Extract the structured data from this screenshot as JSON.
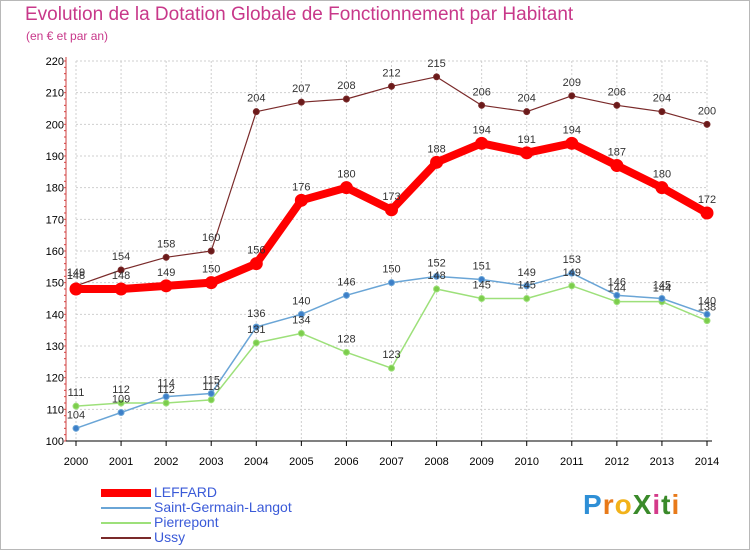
{
  "header": {
    "title": "Evolution de la Dotation Globale de Fonctionnement par Habitant",
    "subtitle": "(en € et par an)"
  },
  "logo": {
    "text": "ProXiti",
    "letters": [
      "P",
      "r",
      "o",
      "X",
      "i",
      "t",
      "i"
    ]
  },
  "colors": {
    "LEFFARD": "#ff0000",
    "Saint-Germain-Langot": "#6aa5d6",
    "Pierrepont": "#9de07a",
    "Ussy": "#7a2a2a",
    "axis_text": "#000000",
    "title": "#c8388a",
    "legend_text": "#3a5ad8",
    "grid": "#cfcfcf",
    "value_label": "#333333"
  },
  "chart_data": {
    "type": "line",
    "title": "Evolution de la Dotation Globale de Fonctionnement par Habitant",
    "subtitle": "(en € et par an)",
    "x": [
      2000,
      2001,
      2002,
      2003,
      2004,
      2005,
      2006,
      2007,
      2008,
      2009,
      2010,
      2011,
      2012,
      2013,
      2014
    ],
    "ylim": [
      100,
      220
    ],
    "yticks": [
      100,
      110,
      120,
      130,
      140,
      150,
      160,
      170,
      180,
      190,
      200,
      210,
      220
    ],
    "grid": true,
    "legend_position": "bottom-left",
    "series": [
      {
        "name": "LEFFARD",
        "values": [
          148,
          148,
          149,
          150,
          156,
          176,
          180,
          173,
          188,
          194,
          191,
          194,
          187,
          180,
          172
        ]
      },
      {
        "name": "Saint-Germain-Langot",
        "values": [
          104,
          109,
          114,
          115,
          136,
          140,
          146,
          150,
          152,
          151,
          149,
          153,
          146,
          145,
          140
        ]
      },
      {
        "name": "Pierrepont",
        "values": [
          111,
          112,
          112,
          113,
          131,
          134,
          128,
          123,
          148,
          145,
          145,
          149,
          144,
          144,
          138
        ]
      },
      {
        "name": "Ussy",
        "values": [
          149,
          154,
          158,
          160,
          204,
          207,
          208,
          212,
          215,
          206,
          204,
          209,
          206,
          204,
          200
        ]
      }
    ]
  }
}
